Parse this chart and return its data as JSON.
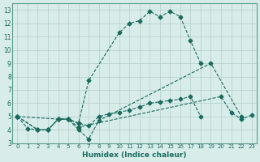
{
  "xlabel": "Humidex (Indice chaleur)",
  "ylabel": "",
  "bg_color": "#d8ecea",
  "grid_color": "#b0cfcc",
  "line_color": "#1a6b5e",
  "xlim": [
    -0.5,
    23.5
  ],
  "ylim": [
    3,
    13.5
  ],
  "xticks": [
    0,
    1,
    2,
    3,
    4,
    5,
    6,
    7,
    8,
    9,
    10,
    11,
    12,
    13,
    14,
    15,
    16,
    17,
    18,
    19,
    20,
    21,
    22,
    23
  ],
  "yticks": [
    3,
    4,
    5,
    6,
    7,
    8,
    9,
    10,
    11,
    12,
    13
  ],
  "series": [
    {
      "x": [
        0,
        1,
        2,
        3,
        4,
        5,
        6,
        7,
        8,
        9,
        10,
        11,
        12,
        13,
        14,
        15,
        16,
        17,
        18,
        19,
        20,
        21,
        22,
        23
      ],
      "y": [
        5.0,
        4.1,
        4.0,
        4.0,
        4.8,
        4.8,
        4.0,
        3.3,
        4.7,
        null,
        null,
        null,
        null,
        null,
        null,
        null,
        null,
        null,
        null,
        9.0,
        null,
        null,
        5.0,
        null
      ]
    },
    {
      "x": [
        0,
        1,
        2,
        3,
        4,
        5,
        6,
        7,
        8,
        9,
        10,
        11,
        12,
        13,
        14,
        15,
        16,
        17,
        18,
        19,
        20,
        21,
        22,
        23
      ],
      "y": [
        5.0,
        null,
        null,
        null,
        4.8,
        4.8,
        4.2,
        null,
        null,
        null,
        null,
        null,
        null,
        null,
        null,
        null,
        null,
        null,
        null,
        null,
        6.5,
        5.3,
        4.8,
        5.1
      ]
    },
    {
      "x": [
        0,
        2,
        3,
        4,
        5,
        6,
        7,
        8,
        9,
        10,
        11,
        12,
        13,
        14,
        15,
        16,
        17,
        18,
        19,
        20,
        21,
        22,
        23
      ],
      "y": [
        5.0,
        4.0,
        4.0,
        4.8,
        4.8,
        4.5,
        7.7,
        null,
        null,
        11.3,
        12.0,
        12.2,
        12.9,
        12.5,
        12.9,
        12.5,
        10.7,
        9.0,
        null,
        null,
        null,
        null,
        null
      ]
    },
    {
      "x": [
        0,
        2,
        3,
        4,
        5,
        6,
        7,
        8,
        9,
        10,
        11,
        12,
        13,
        14,
        15,
        16,
        17,
        18,
        19,
        20,
        21,
        22,
        23
      ],
      "y": [
        5.0,
        4.0,
        4.0,
        4.8,
        4.8,
        4.5,
        4.3,
        5.0,
        5.2,
        5.3,
        5.5,
        5.7,
        6.0,
        6.1,
        6.2,
        6.3,
        6.5,
        5.0,
        null,
        null,
        null,
        null,
        null
      ]
    }
  ]
}
